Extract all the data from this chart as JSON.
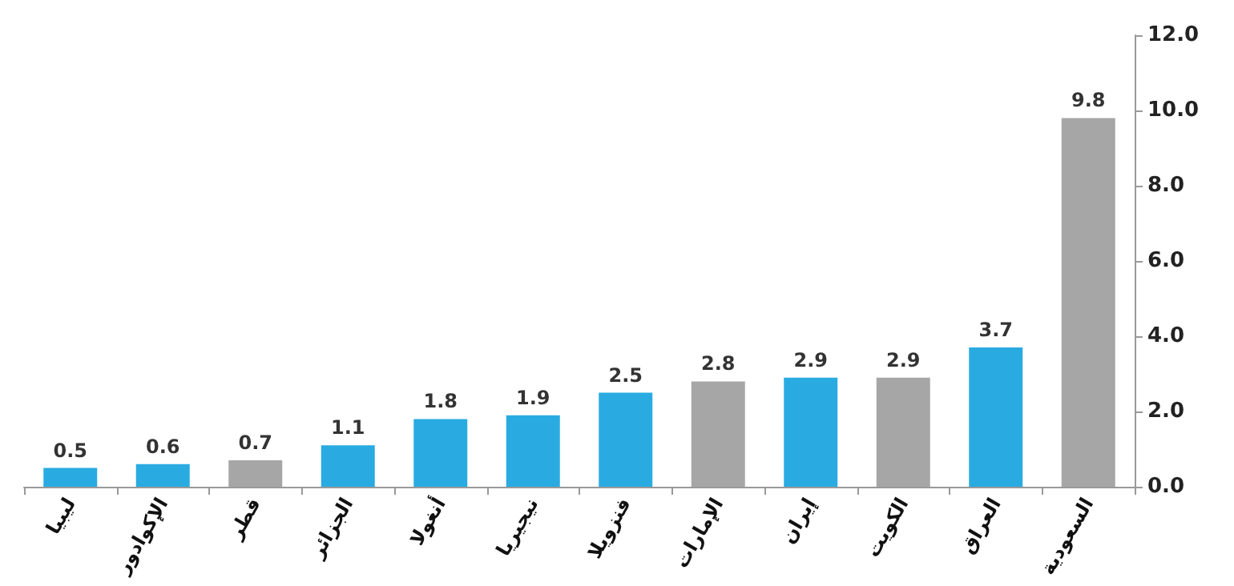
{
  "chart_data": {
    "type": "bar",
    "categories": [
      "ليبيا",
      "الإكوادور",
      "قطر",
      "الجزائر",
      "أنغولا",
      "نيجيريا",
      "فنزويلا",
      "الإمارات",
      "إيران",
      "الكويت",
      "العراق",
      "السعودية"
    ],
    "values": [
      0.5,
      0.6,
      0.7,
      1.1,
      1.8,
      1.9,
      2.5,
      2.8,
      2.9,
      2.9,
      3.7,
      9.8
    ],
    "colors": [
      "#29abe2",
      "#29abe2",
      "#a6a6a6",
      "#29abe2",
      "#29abe2",
      "#29abe2",
      "#29abe2",
      "#a6a6a6",
      "#29abe2",
      "#a6a6a6",
      "#29abe2",
      "#a6a6a6"
    ],
    "ylim": [
      0,
      12
    ],
    "yticks": [
      {
        "value": 0,
        "label": "0.0"
      },
      {
        "value": 2,
        "label": "2.0"
      },
      {
        "value": 4,
        "label": "4.0"
      },
      {
        "value": 6,
        "label": "6.0"
      },
      {
        "value": 8,
        "label": "8.0"
      },
      {
        "value": 10,
        "label": "10.0"
      },
      {
        "value": 12,
        "label": "12.0"
      }
    ],
    "data_labels": true
  }
}
